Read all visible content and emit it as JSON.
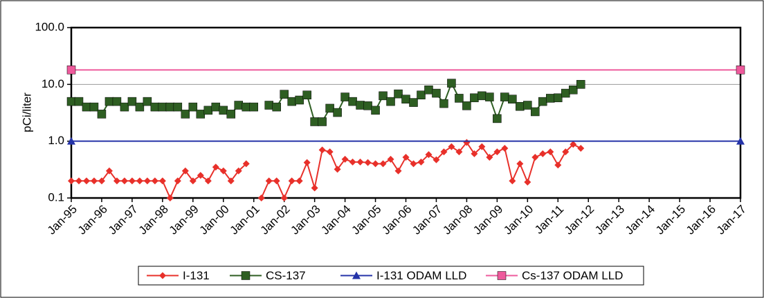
{
  "chart_data": {
    "type": "line",
    "y_label": "pCi/liter",
    "log_scale": true,
    "grid": true,
    "legend": "bottom",
    "ylim": [
      0.1,
      100
    ],
    "yticks": [
      {
        "value": 100,
        "label": "100.0"
      },
      {
        "value": 10,
        "label": "10.0"
      },
      {
        "value": 1,
        "label": "1.0"
      },
      0.1
    ],
    "xlim": [
      "1995-01",
      "2017-01"
    ],
    "xticks": [
      {
        "value": "1995-01",
        "label": "Jan-95"
      },
      {
        "value": "1996-01",
        "label": "Jan-96"
      },
      {
        "value": "1997-01",
        "label": "Jan-97"
      },
      {
        "value": "1998-01",
        "label": "Jan-98"
      },
      {
        "value": "1999-01",
        "label": "Jan-99"
      },
      {
        "value": "2000-01",
        "label": "Jan-00"
      },
      {
        "value": "2001-01",
        "label": "Jan-01"
      },
      {
        "value": "2002-01",
        "label": "Jan-02"
      },
      {
        "value": "2003-01",
        "label": "Jan-03"
      },
      {
        "value": "2004-01",
        "label": "Jan-04"
      },
      {
        "value": "2005-01",
        "label": "Jan-05"
      },
      {
        "value": "2006-01",
        "label": "Jan-06"
      },
      {
        "value": "2007-01",
        "label": "Jan-07"
      },
      {
        "value": "2008-01",
        "label": "Jan-08"
      },
      {
        "value": "2009-01",
        "label": "Jan-09"
      },
      {
        "value": "2010-01",
        "label": "Jan-10"
      },
      {
        "value": "2011-01",
        "label": "Jan-11"
      },
      {
        "value": "2012-01",
        "label": "Jan-12"
      },
      {
        "value": "2013-01",
        "label": "Jan-13"
      },
      {
        "value": "2014-01",
        "label": "Jan-14"
      },
      {
        "value": "2015-01",
        "label": "Jan-15"
      },
      {
        "value": "2016-01",
        "label": "Jan-16"
      },
      {
        "value": "2017-01",
        "label": "Jan-17"
      }
    ],
    "series": [
      {
        "name": "I-131",
        "color": "#e8302a",
        "marker": "diamond",
        "x": [
          "1995-01",
          "1995-04",
          "1995-07",
          "1995-10",
          "1996-01",
          "1996-04",
          "1996-07",
          "1996-10",
          "1997-01",
          "1997-04",
          "1997-07",
          "1997-10",
          "1998-01",
          "1998-04",
          "1998-07",
          "1998-10",
          "1999-01",
          "1999-04",
          "1999-07",
          "1999-10",
          "2000-01",
          "2000-04",
          "2000-07",
          "2000-10",
          "2001-01",
          "2001-04",
          "2001-07",
          "2001-10",
          "2002-01",
          "2002-04",
          "2002-07",
          "2002-10",
          "2003-01",
          "2003-04",
          "2003-07",
          "2003-10",
          "2004-01",
          "2004-04",
          "2004-07",
          "2004-10",
          "2005-01",
          "2005-04",
          "2005-07",
          "2005-10",
          "2006-01",
          "2006-04",
          "2006-07",
          "2006-10",
          "2007-01",
          "2007-04",
          "2007-07",
          "2007-10",
          "2008-01",
          "2008-04",
          "2008-07",
          "2008-10",
          "2009-01",
          "2009-04",
          "2009-07",
          "2009-10",
          "2010-01",
          "2010-04",
          "2010-07",
          "2010-10",
          "2011-01",
          "2011-04",
          "2011-07",
          "2011-10"
        ],
        "values": [
          0.2,
          0.2,
          0.2,
          0.2,
          0.2,
          0.3,
          0.2,
          0.2,
          0.2,
          0.2,
          0.2,
          0.2,
          0.2,
          0.1,
          0.2,
          0.3,
          0.2,
          0.25,
          0.2,
          0.35,
          0.3,
          0.2,
          0.3,
          0.4,
          null,
          0.1,
          0.2,
          0.2,
          0.1,
          0.2,
          0.2,
          0.42,
          0.15,
          0.7,
          0.65,
          0.32,
          0.48,
          0.43,
          0.43,
          0.42,
          0.4,
          0.4,
          0.48,
          0.3,
          0.52,
          0.4,
          0.43,
          0.58,
          0.47,
          0.65,
          0.8,
          0.65,
          0.95,
          0.6,
          0.8,
          0.52,
          0.65,
          0.75,
          0.2,
          0.4,
          0.19,
          0.52,
          0.6,
          0.65,
          0.38,
          0.65,
          0.88,
          0.75
        ]
      },
      {
        "name": "CS-137",
        "color": "#2e5e22",
        "marker": "square",
        "x": [
          "1995-01",
          "1995-04",
          "1995-07",
          "1995-10",
          "1996-01",
          "1996-04",
          "1996-07",
          "1996-10",
          "1997-01",
          "1997-04",
          "1997-07",
          "1997-10",
          "1998-01",
          "1998-04",
          "1998-07",
          "1998-10",
          "1999-01",
          "1999-04",
          "1999-07",
          "1999-10",
          "2000-01",
          "2000-04",
          "2000-07",
          "2000-10",
          "2001-01",
          "2001-04",
          "2001-07",
          "2001-10",
          "2002-01",
          "2002-04",
          "2002-07",
          "2002-10",
          "2003-01",
          "2003-04",
          "2003-07",
          "2003-10",
          "2004-01",
          "2004-04",
          "2004-07",
          "2004-10",
          "2005-01",
          "2005-04",
          "2005-07",
          "2005-10",
          "2006-01",
          "2006-04",
          "2006-07",
          "2006-10",
          "2007-01",
          "2007-04",
          "2007-07",
          "2007-10",
          "2008-01",
          "2008-04",
          "2008-07",
          "2008-10",
          "2009-01",
          "2009-04",
          "2009-07",
          "2009-10",
          "2010-01",
          "2010-04",
          "2010-07",
          "2010-10",
          "2011-01",
          "2011-04",
          "2011-07",
          "2011-10"
        ],
        "values": [
          5,
          5,
          4,
          4,
          3,
          5,
          5,
          4,
          5,
          4,
          5,
          4,
          4,
          4,
          4,
          3,
          4,
          3,
          3.5,
          4,
          3.5,
          3,
          4.3,
          4,
          4,
          null,
          4.3,
          4,
          6.7,
          5,
          5.3,
          6.5,
          2.2,
          2.2,
          3.8,
          3.2,
          6,
          5,
          4.3,
          4.2,
          3.5,
          6.3,
          5,
          6.8,
          5.5,
          4.8,
          6.5,
          8,
          7,
          4.6,
          10.5,
          5.7,
          4.2,
          5.8,
          6.3,
          6,
          2.5,
          6,
          5.5,
          4.1,
          4.3,
          3.3,
          5,
          5.7,
          5.8,
          7,
          8,
          10
        ]
      },
      {
        "name": "I-131 ODAM LLD",
        "color": "#2433a8",
        "marker": "triangle",
        "x": [
          "1995-01",
          "2017-01"
        ],
        "values": [
          1,
          1
        ]
      },
      {
        "name": "Cs-137 ODAM LLD",
        "color": "#ee5a9c",
        "marker": "square",
        "x": [
          "1995-01",
          "2017-01"
        ],
        "values": [
          18,
          18
        ]
      }
    ]
  }
}
